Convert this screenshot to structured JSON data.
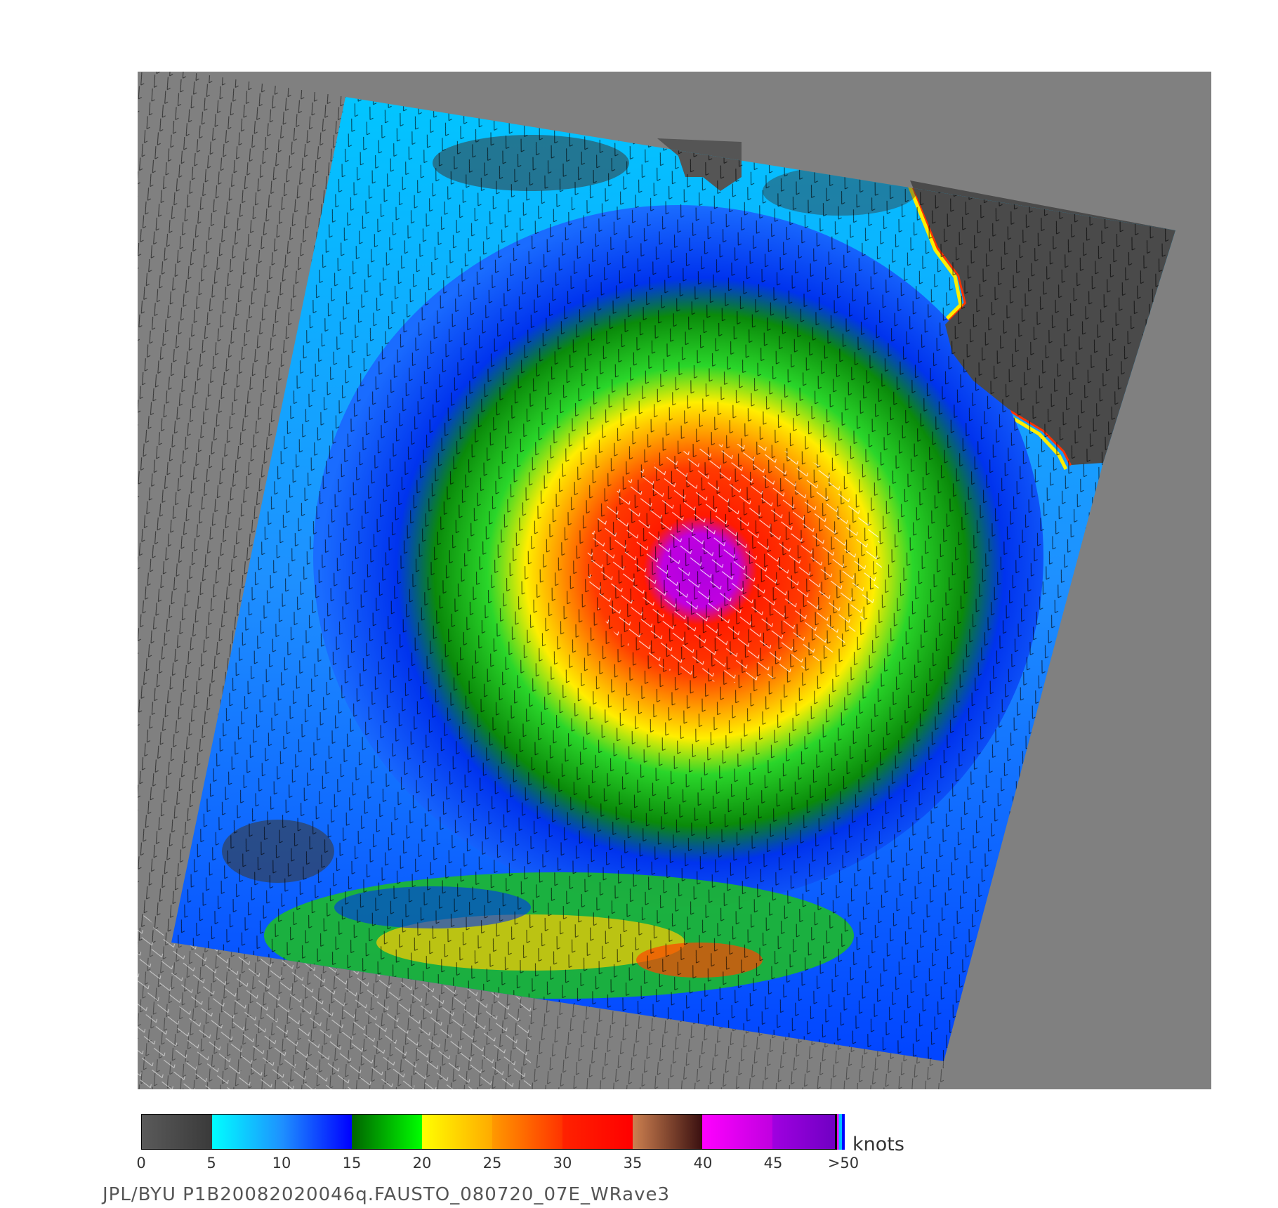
{
  "map": {
    "background_color": "#808080",
    "land_color": "#4a4a4a",
    "wind_barb_color": "#000000",
    "high_wind_barb_color": "#ffffff"
  },
  "colorbar": {
    "units": "knots",
    "ticks": [
      "0",
      "5",
      "10",
      "15",
      "20",
      "25",
      "30",
      "35",
      "40",
      "45",
      ">50"
    ],
    "segments": [
      {
        "range": "0-5",
        "from": "#5a5a5a",
        "to": "#3a3a3a"
      },
      {
        "range": "5-10",
        "from": "#00ffff",
        "to": "#1e90ff"
      },
      {
        "range": "10-15",
        "from": "#1e90ff",
        "to": "#0000ff"
      },
      {
        "range": "15-20",
        "from": "#006400",
        "to": "#00ff00"
      },
      {
        "range": "20-25",
        "from": "#ffff00",
        "to": "#ffaa00"
      },
      {
        "range": "25-30",
        "from": "#ff9900",
        "to": "#ff3300"
      },
      {
        "range": "30-35",
        "from": "#ff2200",
        "to": "#ff0000"
      },
      {
        "range": "35-40",
        "from": "#cd8050",
        "to": "#3a1010"
      },
      {
        "range": "40-45",
        "from": "#ff00ff",
        "to": "#c000e0"
      },
      {
        "range": "45-50",
        "from": "#a000e0",
        "to": "#6a00c0"
      }
    ]
  },
  "footer": {
    "caption": "JPL/BYU  P1B20082020046q.FAUSTO_080720_07E_WRave3"
  }
}
